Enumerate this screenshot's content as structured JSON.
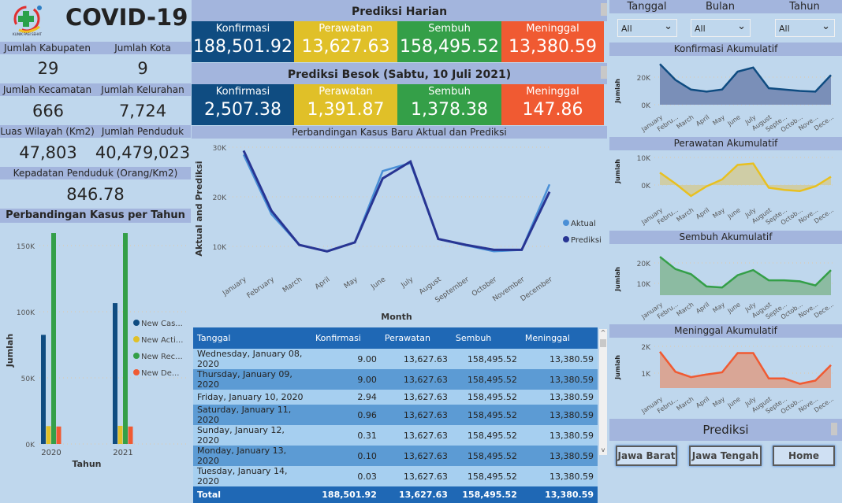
{
  "title": "COVID-19",
  "logo": {
    "text": "KLINIK PASI SEHAT"
  },
  "stats": [
    {
      "label": "Jumlah Kabupaten",
      "value": "29"
    },
    {
      "label": "Jumlah Kota",
      "value": "9"
    },
    {
      "label": "Jumlah Kecamatan",
      "value": "666"
    },
    {
      "label": "Jumlah Kelurahan",
      "value": "7,724"
    },
    {
      "label": "Luas Wilayah (Km2)",
      "value": "47,803"
    },
    {
      "label": "Jumlah Penduduk",
      "value": "40,479,023"
    },
    {
      "label": "Kepadatan Penduduk (Orang/Km2)",
      "value": "846.78"
    }
  ],
  "colors": {
    "konfirmasi": "#0f4c81",
    "perawatan": "#e0c028",
    "sembuh": "#349f48",
    "meninggal": "#f05a32",
    "aktual": "#4a8fd6",
    "prediksi": "#283593"
  },
  "harian": {
    "title": "Prediksi Harian",
    "cards": [
      {
        "label": "Konfirmasi",
        "value": "188,501.92"
      },
      {
        "label": "Perawatan",
        "value": "13,627.63"
      },
      {
        "label": "Sembuh",
        "value": "158,495.52"
      },
      {
        "label": "Meninggal",
        "value": "13,380.59"
      }
    ]
  },
  "besok": {
    "title": "Prediksi Besok (Sabtu, 10 Juli 2021)",
    "cards": [
      {
        "label": "Konfirmasi",
        "value": "2,507.38"
      },
      {
        "label": "Perawatan",
        "value": "1,391.87"
      },
      {
        "label": "Sembuh",
        "value": "1,378.38"
      },
      {
        "label": "Meninggal",
        "value": "147.86"
      }
    ]
  },
  "filters": [
    {
      "label": "Tanggal",
      "value": "All"
    },
    {
      "label": "Bulan",
      "value": "All"
    },
    {
      "label": "Tahun",
      "value": "All"
    }
  ],
  "table": {
    "columns": [
      "Tanggal",
      "Konfirmasi",
      "Perawatan",
      "Sembuh",
      "Meninggal"
    ],
    "rows": [
      [
        "Wednesday, January 08, 2020",
        "9.00",
        "13,627.63",
        "158,495.52",
        "13,380.59"
      ],
      [
        "Thursday, January 09, 2020",
        "9.00",
        "13,627.63",
        "158,495.52",
        "13,380.59"
      ],
      [
        "Friday, January 10, 2020",
        "2.94",
        "13,627.63",
        "158,495.52",
        "13,380.59"
      ],
      [
        "Saturday, January 11, 2020",
        "0.96",
        "13,627.63",
        "158,495.52",
        "13,380.59"
      ],
      [
        "Sunday, January 12, 2020",
        "0.31",
        "13,627.63",
        "158,495.52",
        "13,380.59"
      ],
      [
        "Monday, January 13, 2020",
        "0.10",
        "13,627.63",
        "158,495.52",
        "13,380.59"
      ],
      [
        "Tuesday, January 14, 2020",
        "0.03",
        "13,627.63",
        "158,495.52",
        "13,380.59"
      ]
    ],
    "total": [
      "Total",
      "188,501.92",
      "13,627.63",
      "158,495.52",
      "13,380.59"
    ]
  },
  "prediksi_nav": {
    "title": "Prediksi",
    "buttons": [
      "Jawa Barat",
      "Jawa Tengah",
      "Home"
    ]
  },
  "chart_data": [
    {
      "id": "bar",
      "type": "bar",
      "title": "Perbandingan Kasus per Tahun",
      "xlabel": "Tahun",
      "ylabel": "Jumlah",
      "categories": [
        "2020",
        "2021"
      ],
      "ylim": [
        0,
        160000
      ],
      "yticks": [
        0,
        50000,
        100000,
        150000
      ],
      "ytick_labels": [
        "0K",
        "50K",
        "100K",
        "150K"
      ],
      "legend": "right",
      "series": [
        {
          "name": "New Cas...",
          "color": "#0f4c81",
          "values": [
            82500,
            106500
          ]
        },
        {
          "name": "New Acti...",
          "color": "#e0c028",
          "values": [
            13500,
            13700
          ]
        },
        {
          "name": "New Rec...",
          "color": "#349f48",
          "values": [
            159500,
            159500
          ]
        },
        {
          "name": "New De...",
          "color": "#f05a32",
          "values": [
            13200,
            13200
          ]
        }
      ]
    },
    {
      "id": "line",
      "type": "line",
      "title": "Perbandingan Kasus Baru Aktual dan Prediksi",
      "xlabel": "Month",
      "ylabel": "Aktual and Prediksi",
      "categories": [
        "January",
        "February",
        "March",
        "April",
        "May",
        "June",
        "July",
        "August",
        "September",
        "October",
        "November",
        "December"
      ],
      "yticks": [
        10000,
        20000,
        30000
      ],
      "ytick_labels": [
        "10K",
        "20K",
        "30K"
      ],
      "legend": "right",
      "series": [
        {
          "name": "Aktual",
          "color": "#4a8fd6",
          "values": [
            28500,
            16500,
            10300,
            9000,
            10800,
            25200,
            26800,
            11500,
            10200,
            9000,
            9300,
            22500
          ]
        },
        {
          "name": "Prediksi",
          "color": "#283593",
          "values": [
            29300,
            17200,
            10300,
            9000,
            10800,
            23700,
            27100,
            11500,
            10300,
            9300,
            9300,
            21000
          ]
        }
      ]
    },
    {
      "id": "konf",
      "type": "area",
      "title": "Konfirmasi Akumulatif",
      "ylabel": "Jumlah",
      "color": "#0f4c81",
      "fill": "#7a8fb8",
      "categories": [
        "January",
        "Febru...",
        "March",
        "April",
        "May",
        "June",
        "July",
        "August",
        "Septe...",
        "Octob...",
        "Nove...",
        "Dece..."
      ],
      "yticks": [
        0,
        20000
      ],
      "ytick_labels": [
        "0K",
        "20K"
      ],
      "values": [
        29500,
        18000,
        11000,
        9500,
        11000,
        24000,
        27000,
        12000,
        11000,
        10000,
        9500,
        21500
      ]
    },
    {
      "id": "peraw",
      "type": "area",
      "title": "Perawatan Akumulatif",
      "ylabel": "Jumlah",
      "color": "#e8c020",
      "fill": "#cfcda6",
      "categories": [
        "January",
        "Febru...",
        "March",
        "April",
        "May",
        "June",
        "July",
        "August",
        "Septe...",
        "Octob...",
        "Nove...",
        "Dece..."
      ],
      "yticks": [
        0,
        10000
      ],
      "ytick_labels": [
        "0K",
        "10K"
      ],
      "values": [
        4500,
        500,
        -4000,
        -500,
        2000,
        7300,
        7800,
        -1000,
        -1800,
        -2200,
        -500,
        3000
      ]
    },
    {
      "id": "semb",
      "type": "area",
      "title": "Sembuh Akumulatif",
      "ylabel": "Jumlah",
      "color": "#349f48",
      "fill": "#8cbba2",
      "categories": [
        "January",
        "Febru...",
        "March",
        "April",
        "May",
        "June",
        "July",
        "August",
        "Septe...",
        "Octob...",
        "Nove...",
        "Dece..."
      ],
      "yticks": [
        10000,
        20000
      ],
      "ytick_labels": [
        "10K",
        "20K"
      ],
      "values": [
        23000,
        17000,
        14500,
        8500,
        8000,
        14000,
        16500,
        11500,
        11500,
        11000,
        9000,
        16500
      ]
    },
    {
      "id": "men",
      "type": "area",
      "title": "Meninggal Akumulatif",
      "ylabel": "Jumlah",
      "color": "#f05a32",
      "fill": "#d9a696",
      "categories": [
        "January",
        "Febru...",
        "March",
        "April",
        "May",
        "June",
        "July",
        "August",
        "Septe...",
        "Octob...",
        "Nove...",
        "Dece..."
      ],
      "yticks": [
        1000,
        2000
      ],
      "ytick_labels": [
        "1K",
        "2K"
      ],
      "values": [
        1800,
        1050,
        850,
        950,
        1030,
        1750,
        1750,
        800,
        800,
        600,
        720,
        1300
      ]
    }
  ]
}
